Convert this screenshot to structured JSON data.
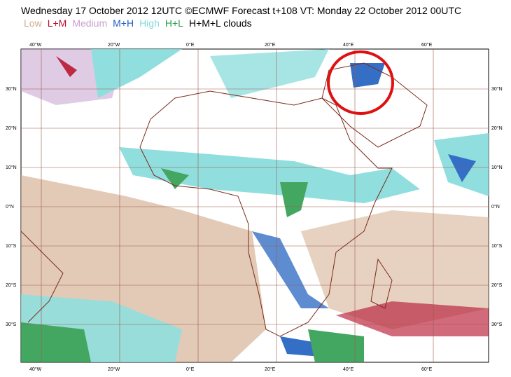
{
  "header": {
    "title": "Wednesday 17 October 2012 12UTC ©ECMWF Forecast t+108 VT: Monday 22 October 2012 00UTC"
  },
  "legend": [
    {
      "label": "Low",
      "color": "#d2ab8c"
    },
    {
      "label": "L+M",
      "color": "#b5122e"
    },
    {
      "label": "Medium",
      "color": "#c79fcf"
    },
    {
      "label": "M+H",
      "color": "#1f5fbf"
    },
    {
      "label": "High",
      "color": "#84dbdb"
    },
    {
      "label": "H+L",
      "color": "#2e9e50"
    },
    {
      "label": "H+M+L clouds",
      "color": "#000000"
    }
  ],
  "map": {
    "longitudes": [
      "40°W",
      "20°W",
      "0°E",
      "20°E",
      "40°E",
      "60°E"
    ],
    "latitudes": [
      "30°N",
      "20°N",
      "10°N",
      "0°N",
      "10°S",
      "20°S",
      "30°S"
    ]
  }
}
